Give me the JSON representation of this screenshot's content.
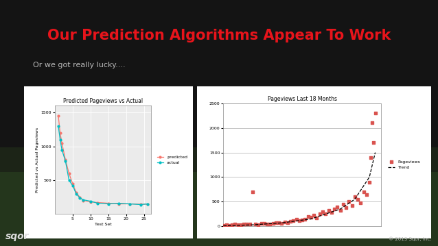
{
  "title": "Our Prediction Algorithms Appear To Work",
  "bullet": "Or we got really lucky....",
  "logo": "sqor",
  "footer": "© 2013 Sqor, Inc.",
  "chart_data": [
    {
      "type": "line",
      "title": "Predicted Pageviews vs Actual",
      "x_label": "Test Set",
      "y_label": "Predicted vs Actual Pageviews",
      "xlim": [
        0,
        27
      ],
      "xticks": [
        5,
        10,
        15,
        20,
        25
      ],
      "ylim": [
        0,
        1600
      ],
      "yticks": [
        500,
        1000,
        1500
      ],
      "grid": true,
      "legend": "right",
      "series": [
        {
          "name": "predicted",
          "color": "#f8766d",
          "type": "line",
          "marker": "o",
          "line_style": "solid",
          "x": [
            1,
            1.5,
            2,
            3,
            4,
            5,
            6,
            7,
            8,
            10,
            12,
            15,
            18,
            21,
            24,
            26
          ],
          "values": [
            1450,
            1200,
            1050,
            800,
            600,
            450,
            320,
            250,
            200,
            180,
            170,
            160,
            150,
            150,
            145,
            145
          ]
        },
        {
          "name": "actual",
          "color": "#00bfc4",
          "type": "line",
          "marker": "o",
          "line_style": "solid",
          "x": [
            1,
            1.5,
            2,
            3,
            4,
            5,
            6,
            7,
            8,
            10,
            12,
            15,
            18,
            21,
            24,
            26
          ],
          "values": [
            1300,
            1100,
            950,
            780,
            500,
            420,
            300,
            240,
            210,
            190,
            160,
            150,
            160,
            150,
            140,
            150
          ]
        }
      ]
    },
    {
      "type": "scatter",
      "title": "Pageviews Last 18 Months",
      "xlim": [
        0,
        540
      ],
      "ylim": [
        0,
        2500
      ],
      "yticks": [
        0,
        500,
        1000,
        1500,
        2000,
        2500
      ],
      "grid": true,
      "legend": "right",
      "tick_labels": "y",
      "series": [
        {
          "name": "Pageviews",
          "color": "#d9534f",
          "type": "scatter",
          "marker": "square",
          "x": [
            0,
            10,
            20,
            30,
            40,
            50,
            60,
            70,
            80,
            90,
            100,
            110,
            120,
            130,
            140,
            150,
            160,
            170,
            180,
            190,
            200,
            210,
            220,
            230,
            240,
            250,
            260,
            270,
            280,
            290,
            300,
            310,
            320,
            330,
            340,
            350,
            360,
            370,
            380,
            390,
            400,
            410,
            420,
            430,
            440,
            450,
            460,
            470,
            480,
            490,
            500,
            505,
            510,
            515,
            520
          ],
          "values": [
            20,
            25,
            15,
            30,
            40,
            35,
            30,
            45,
            40,
            50,
            700,
            40,
            30,
            60,
            55,
            50,
            45,
            60,
            70,
            80,
            60,
            90,
            80,
            100,
            120,
            150,
            110,
            130,
            140,
            200,
            180,
            220,
            170,
            250,
            300,
            260,
            320,
            280,
            350,
            400,
            330,
            450,
            380,
            500,
            420,
            600,
            550,
            480,
            700,
            650,
            900,
            1400,
            2100,
            1700,
            2300
          ]
        },
        {
          "name": "Trend",
          "color": "#000000",
          "type": "line",
          "line_style": "dashed",
          "x": [
            0,
            100,
            200,
            300,
            400,
            450,
            500,
            520
          ],
          "values": [
            10,
            30,
            70,
            150,
            350,
            550,
            1000,
            1500
          ]
        }
      ]
    }
  ]
}
